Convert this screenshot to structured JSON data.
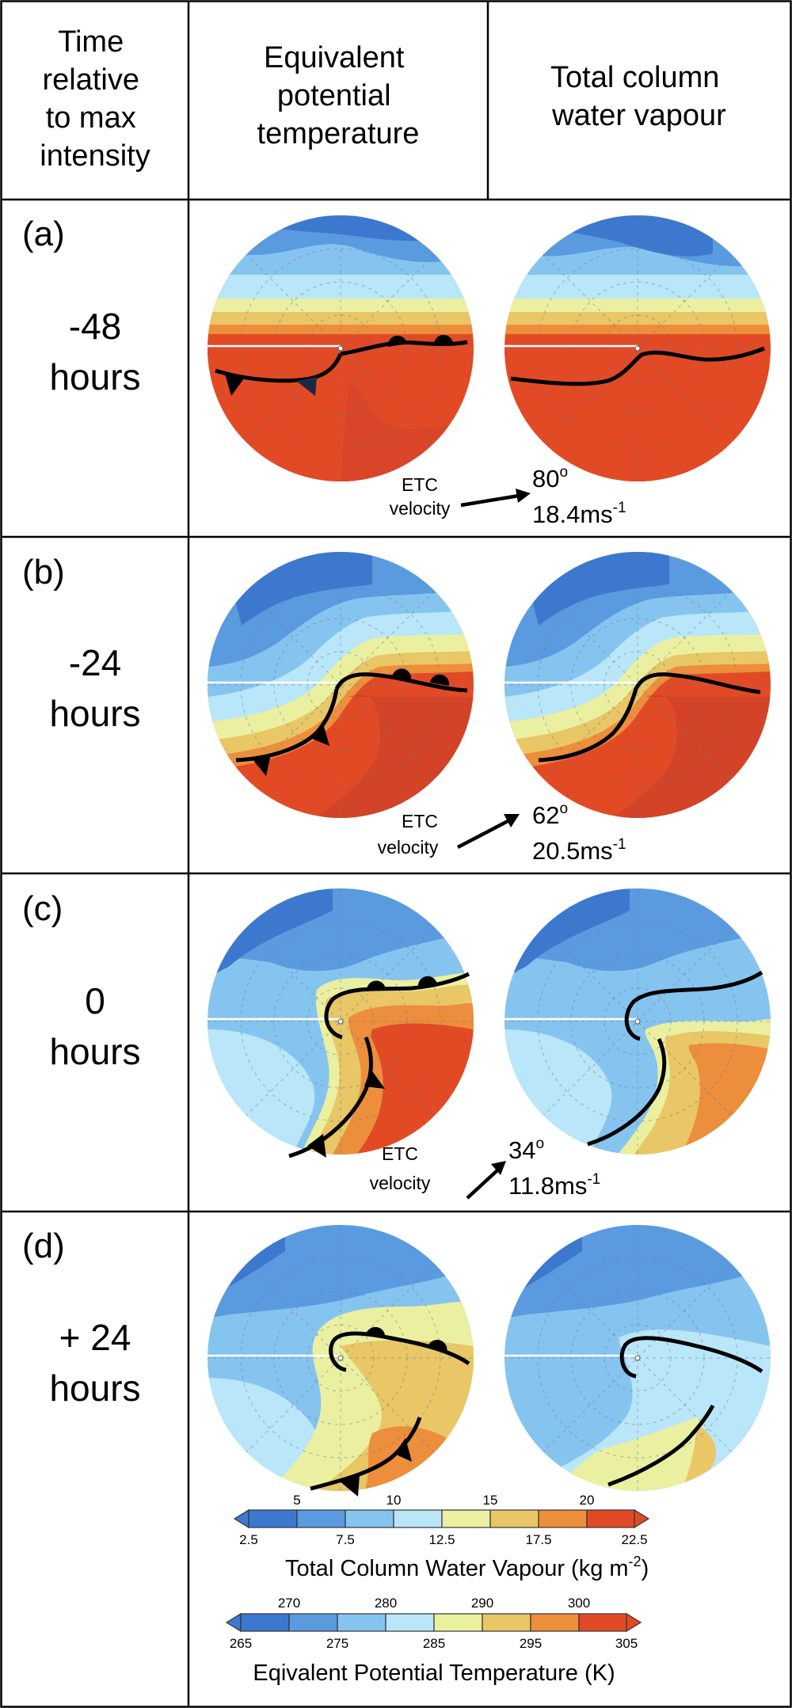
{
  "header": {
    "col1_lines": [
      "Time",
      "relative",
      "to  max",
      "intensity"
    ],
    "col2_lines": [
      "Equivalent",
      "potential",
      "temperature"
    ],
    "col3_lines": [
      "Total column",
      "water vapour"
    ]
  },
  "rows": [
    {
      "label": "(a)",
      "time": "-48",
      "unit": "hours",
      "velocity_label_1": "ETC",
      "velocity_label_2": "velocity",
      "direction": "80",
      "degree_mark": "o",
      "speed": "18.4ms",
      "speed_exp": "-1"
    },
    {
      "label": "(b)",
      "time": "-24",
      "unit": "hours",
      "velocity_label_1": "ETC",
      "velocity_label_2": "velocity",
      "direction": "62",
      "degree_mark": "o",
      "speed": "20.5ms",
      "speed_exp": "-1"
    },
    {
      "label": "(c)",
      "time": "0",
      "unit": "hours",
      "velocity_label_1": "ETC",
      "velocity_label_2": "velocity",
      "direction": "34",
      "degree_mark": "o",
      "speed": "11.8ms",
      "speed_exp": "-1"
    },
    {
      "label": "(d)",
      "time": "+ 24",
      "unit": "hours"
    }
  ],
  "colorbars": {
    "palette": [
      "#3d78cf",
      "#5a9be0",
      "#86c4f0",
      "#b9e6f8",
      "#eaf0a0",
      "#e9c666",
      "#ec8e3c",
      "#e24a25"
    ],
    "tcwv": {
      "upper_ticks": [
        "5",
        "10",
        "15",
        "20"
      ],
      "lower_ticks": [
        "2.5",
        "7.5",
        "12.5",
        "17.5",
        "22.5"
      ],
      "title_main": "Total Column Water Vapour (kg m",
      "title_exp": "-2",
      "title_end": ")"
    },
    "ept": {
      "upper_ticks": [
        "270",
        "280",
        "290",
        "300"
      ],
      "lower_ticks": [
        "265",
        "275",
        "285",
        "295",
        "305"
      ],
      "title": "Eqivalent Potential Temperature (K)"
    }
  }
}
